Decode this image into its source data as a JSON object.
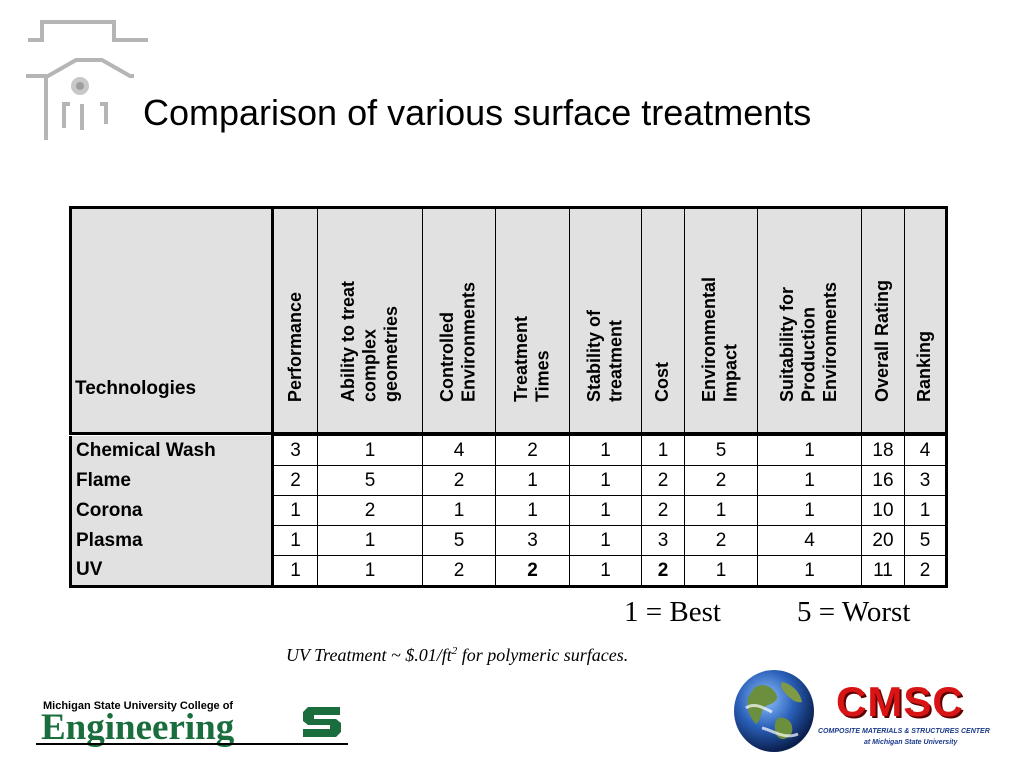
{
  "slide": {
    "title": "Comparison of various surface treatments"
  },
  "table": {
    "row_header": "Technologies",
    "columns": [
      [
        "Performance"
      ],
      [
        "Ability to treat",
        "complex",
        "geometries"
      ],
      [
        "Controlled",
        "Environments"
      ],
      [
        "Treatment",
        "Times"
      ],
      [
        "Stability of",
        "treatment"
      ],
      [
        "Cost"
      ],
      [
        "Environmental",
        "Impact"
      ],
      [
        "Suitability for",
        "Production",
        "Environments"
      ],
      [
        "Overall Rating"
      ],
      [
        "Ranking"
      ]
    ],
    "rows": [
      {
        "name": "Chemical Wash",
        "values": [
          "3",
          "1",
          "4",
          "2",
          "1",
          "1",
          "5",
          "1",
          "18",
          "4"
        ]
      },
      {
        "name": "Flame",
        "values": [
          "2",
          "5",
          "2",
          "1",
          "1",
          "2",
          "2",
          "1",
          "16",
          "3"
        ]
      },
      {
        "name": "Corona",
        "values": [
          "1",
          "2",
          "1",
          "1",
          "1",
          "2",
          "1",
          "1",
          "10",
          "1"
        ]
      },
      {
        "name": "Plasma",
        "values": [
          "1",
          "1",
          "5",
          "3",
          "1",
          "3",
          "2",
          "4",
          "20",
          "5"
        ]
      },
      {
        "name": "UV",
        "values": [
          "1",
          "1",
          "2",
          "2",
          "1",
          "2",
          "1",
          "1",
          "11",
          "2"
        ],
        "bold_columns": [
          3,
          5
        ]
      }
    ]
  },
  "legend": {
    "best": "1 = Best",
    "worst": "5 = Worst"
  },
  "note": {
    "text_before": "UV Treatment ~ $.01/ft",
    "superscript": "2",
    "text_after": " for polymeric surfaces."
  },
  "logos": {
    "msu_line": "Michigan State University College of",
    "msu_word": "Engineering",
    "cmsc_name": "CMSC",
    "cmsc_line1": "COMPOSITE MATERIALS & STRUCTURES CENTER",
    "cmsc_line2": "at Michigan State University"
  },
  "colors": {
    "header_fill": "#e1e1e1",
    "msu_green": "#1a6e3d",
    "cmsc_red": "#d81414"
  },
  "icons": {
    "corner": "building-outline-icon",
    "msu": "spartan-s-icon",
    "globe": "earth-globe-icon"
  }
}
